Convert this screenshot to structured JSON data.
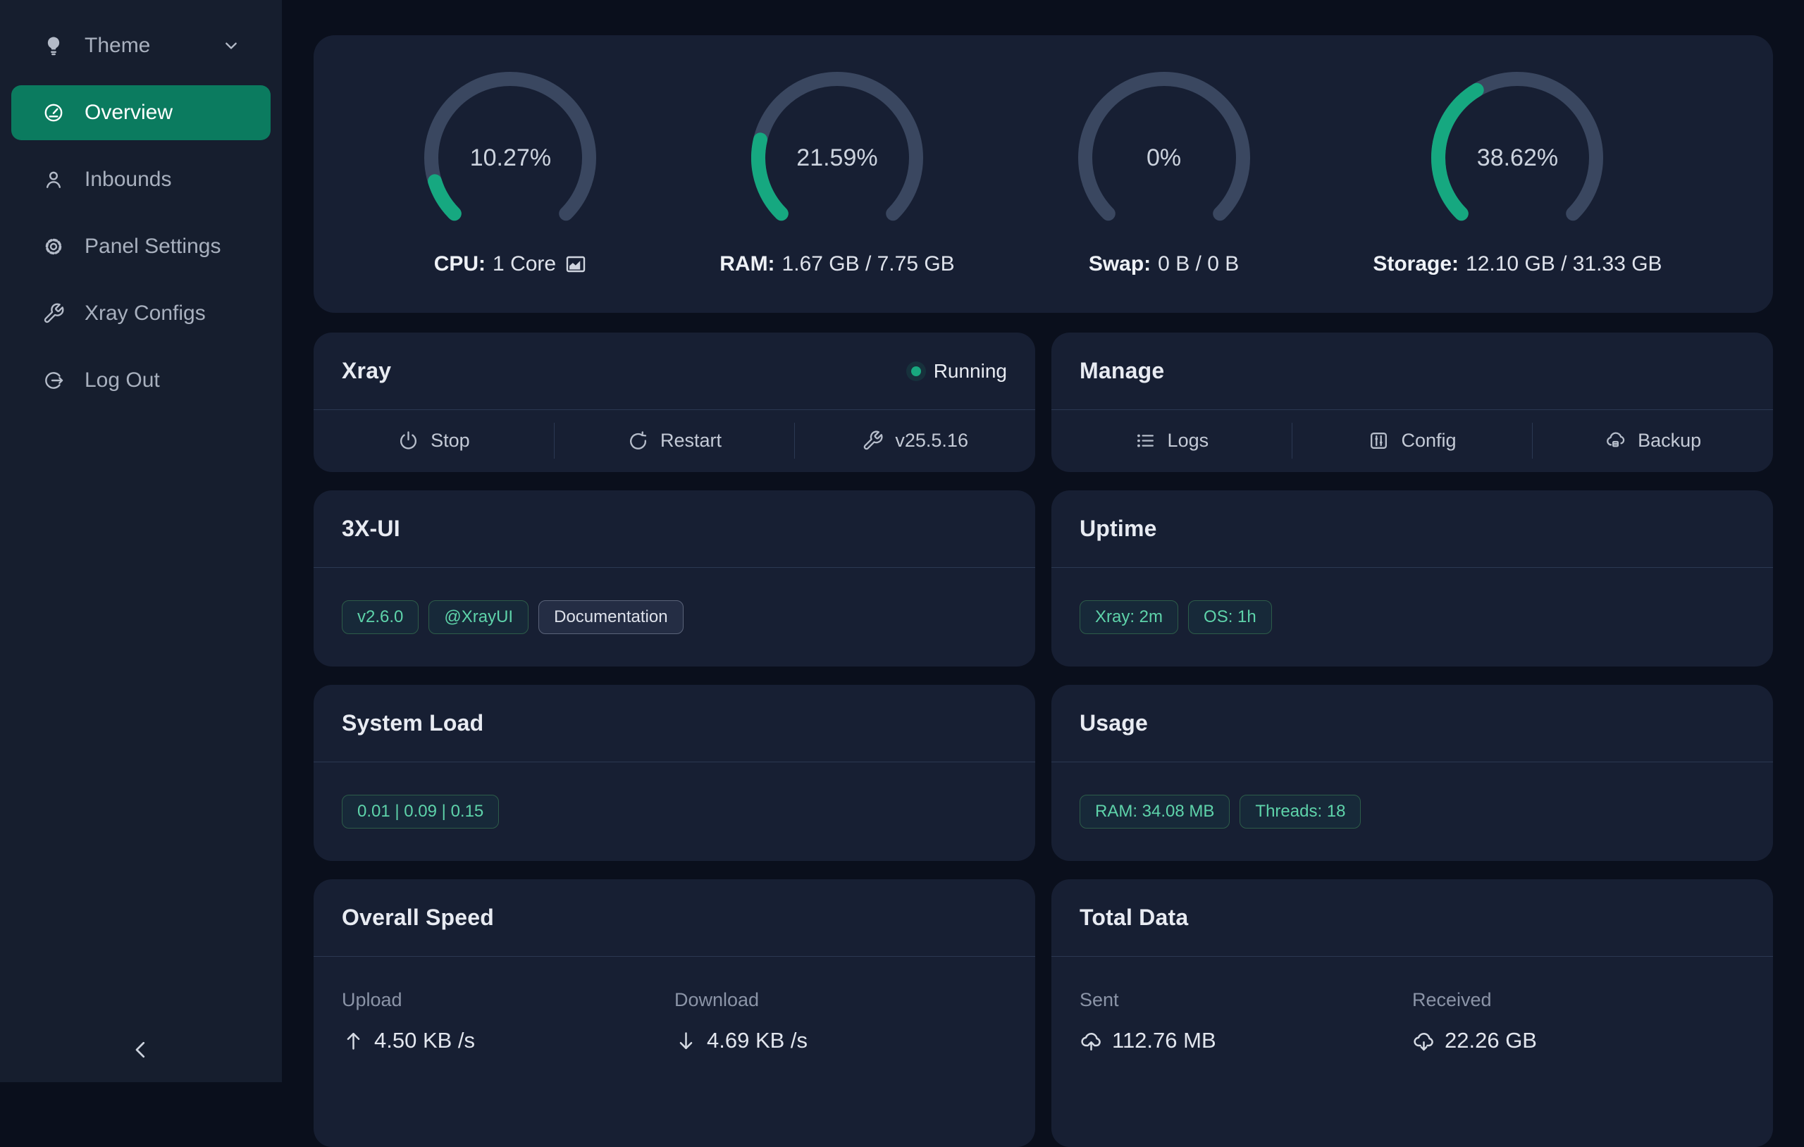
{
  "colors": {
    "sidebar_active_green": "#0b7b5f",
    "gauge_green": "#16a880",
    "gauge_track": "#3a4760",
    "status_green": "#18a87f",
    "tag_green": "#5ed3aa"
  },
  "sidebar": {
    "items": [
      {
        "label": "Theme",
        "icon": "bulb-icon",
        "chevron": true
      },
      {
        "label": "Overview",
        "icon": "dashboard-icon",
        "active": true
      },
      {
        "label": "Inbounds",
        "icon": "user-icon"
      },
      {
        "label": "Panel Settings",
        "icon": "gear-icon"
      },
      {
        "label": "Xray Configs",
        "icon": "wrench-icon"
      },
      {
        "label": "Log Out",
        "icon": "logout-icon"
      }
    ]
  },
  "system_gauges": [
    {
      "id": "cpu",
      "percent": 10.27,
      "percent_label": "10.27%",
      "label_bold": "CPU:",
      "label_rest": "1 Core",
      "chart_icon": true
    },
    {
      "id": "ram",
      "percent": 21.59,
      "percent_label": "21.59%",
      "label_bold": "RAM:",
      "label_rest": "1.67 GB / 7.75 GB"
    },
    {
      "id": "swap",
      "percent": 0,
      "percent_label": "0%",
      "label_bold": "Swap:",
      "label_rest": "0 B / 0 B"
    },
    {
      "id": "storage",
      "percent": 38.62,
      "percent_label": "38.62%",
      "label_bold": "Storage:",
      "label_rest": "12.10 GB / 31.33 GB"
    }
  ],
  "xray": {
    "title": "Xray",
    "status_label": "Running",
    "actions": [
      {
        "label": "Stop",
        "icon": "power-icon"
      },
      {
        "label": "Restart",
        "icon": "restart-icon"
      },
      {
        "label": "v25.5.16",
        "icon": "wrench-icon"
      }
    ]
  },
  "manage": {
    "title": "Manage",
    "actions": [
      {
        "label": "Logs",
        "icon": "list-icon"
      },
      {
        "label": "Config",
        "icon": "sliders-icon"
      },
      {
        "label": "Backup",
        "icon": "cloud-backup-icon"
      }
    ]
  },
  "xui": {
    "title": "3X-UI",
    "tags": [
      {
        "label": "v2.6.0",
        "style": "green",
        "clickable": true
      },
      {
        "label": "@XrayUI",
        "style": "green",
        "clickable": true
      },
      {
        "label": "Documentation",
        "style": "gray",
        "clickable": true
      }
    ]
  },
  "uptime": {
    "title": "Uptime",
    "tags": [
      {
        "label": "Xray: 2m",
        "style": "green",
        "clickable": false
      },
      {
        "label": "OS: 1h",
        "style": "green",
        "clickable": false
      }
    ]
  },
  "sysload": {
    "title": "System Load",
    "tags": [
      {
        "label": "0.01 | 0.09 | 0.15",
        "style": "green",
        "clickable": false
      }
    ]
  },
  "usage": {
    "title": "Usage",
    "tags": [
      {
        "label": "RAM: 34.08 MB",
        "style": "green",
        "clickable": false
      },
      {
        "label": "Threads: 18",
        "style": "green",
        "clickable": false
      }
    ]
  },
  "speed": {
    "title": "Overall Speed",
    "stats": [
      {
        "label": "Upload",
        "value": "4.50 KB /s",
        "icon": "arrow-up-icon"
      },
      {
        "label": "Download",
        "value": "4.69 KB /s",
        "icon": "arrow-down-icon"
      }
    ]
  },
  "totaldata": {
    "title": "Total Data",
    "stats": [
      {
        "label": "Sent",
        "value": "112.76 MB",
        "icon": "cloud-upload-icon"
      },
      {
        "label": "Received",
        "value": "22.26 GB",
        "icon": "cloud-download-icon"
      }
    ]
  }
}
